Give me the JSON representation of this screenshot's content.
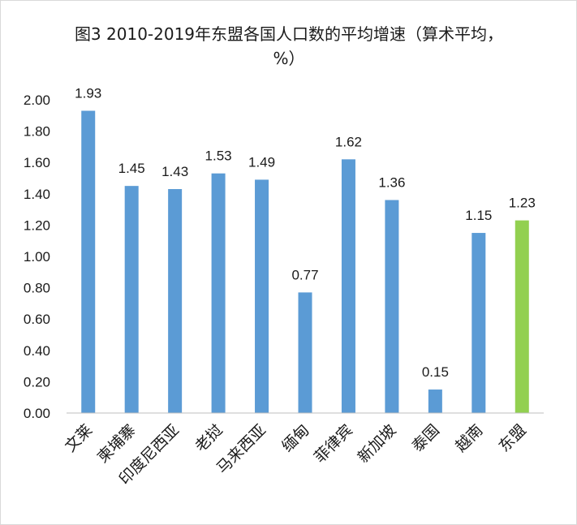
{
  "chart_data": {
    "type": "bar",
    "title": "图3 2010-2019年东盟各国人口数的平均增速（算术平均，%）",
    "categories": [
      "文莱",
      "柬埔寨",
      "印度尼西亚",
      "老挝",
      "马来西亚",
      "缅甸",
      "菲律宾",
      "新加坡",
      "泰国",
      "越南",
      "东盟"
    ],
    "values": [
      1.93,
      1.45,
      1.43,
      1.53,
      1.49,
      0.77,
      1.62,
      1.36,
      0.15,
      1.15,
      1.23
    ],
    "data_labels": [
      "1.93",
      "1.45",
      "1.43",
      "1.53",
      "1.49",
      "0.77",
      "1.62",
      "1.36",
      "0.15",
      "1.15",
      "1.23"
    ],
    "yticks": [
      "0.00",
      "0.20",
      "0.40",
      "0.60",
      "0.80",
      "1.00",
      "1.20",
      "1.40",
      "1.60",
      "1.80",
      "2.00"
    ],
    "ylim": [
      0,
      2.0
    ],
    "grid": false,
    "colors": {
      "default": "#5B9BD5",
      "highlight": "#92D050",
      "axis": "#bfbfbf"
    },
    "highlight_index": 10
  }
}
